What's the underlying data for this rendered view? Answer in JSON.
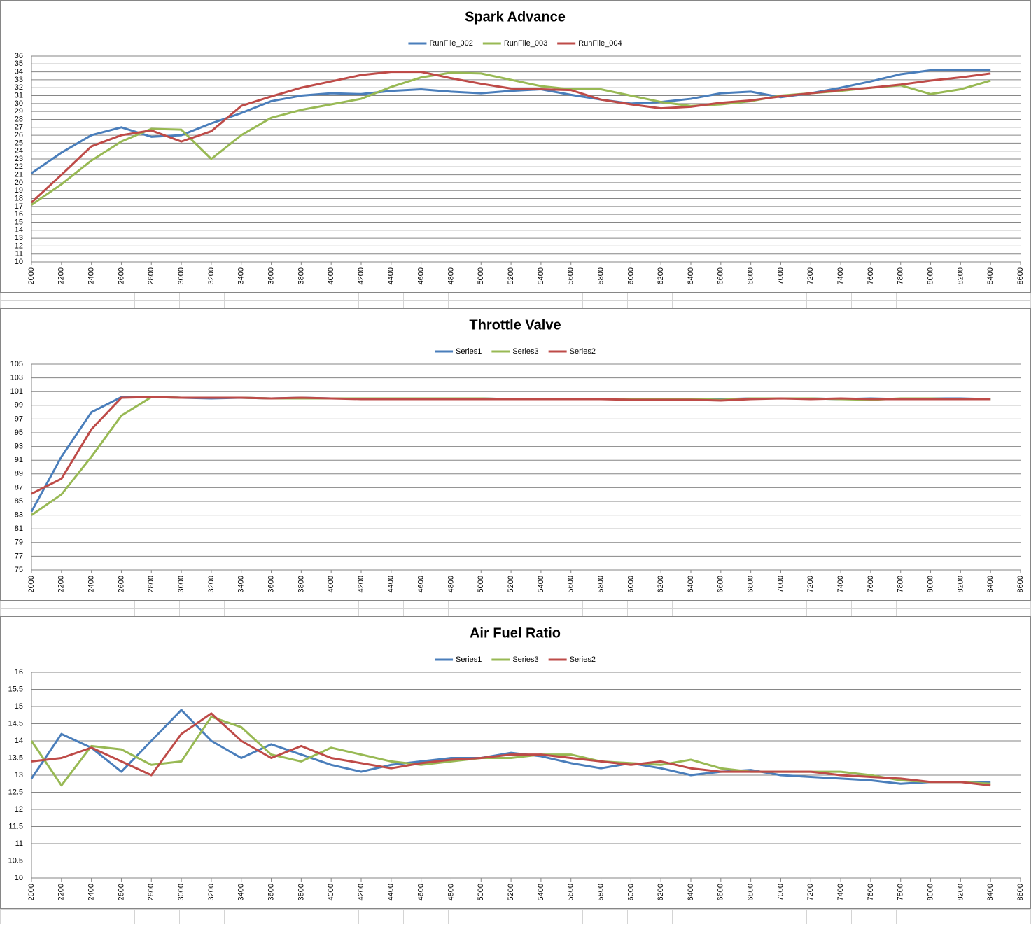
{
  "chart_data": [
    {
      "type": "line",
      "title": "Spark Advance",
      "x": [
        2000,
        2200,
        2400,
        2600,
        2800,
        3000,
        3200,
        3400,
        3600,
        3800,
        4000,
        4200,
        4400,
        4600,
        4800,
        5000,
        5200,
        5400,
        5600,
        5800,
        6000,
        6200,
        6400,
        6600,
        6800,
        7000,
        7200,
        7400,
        7600,
        7800,
        8000,
        8200,
        8400
      ],
      "series": [
        {
          "name": "RunFile_002",
          "color": "#4a7ebb",
          "values": [
            21.2,
            23.8,
            26,
            27,
            25.8,
            26,
            27.5,
            28.8,
            30.3,
            31,
            31.3,
            31.2,
            31.6,
            31.8,
            31.5,
            31.3,
            31.6,
            31.8,
            31.1,
            30.5,
            30,
            30.2,
            30.6,
            31.3,
            31.5,
            30.8,
            31.3,
            32,
            32.8,
            33.7,
            34.2,
            34.2,
            34.2
          ]
        },
        {
          "name": "RunFile_003",
          "color": "#98b954",
          "values": [
            17.2,
            19.8,
            22.8,
            25.2,
            26.8,
            26.7,
            23,
            26,
            28.2,
            29.2,
            29.9,
            30.6,
            32.1,
            33.3,
            33.9,
            33.8,
            33,
            32.2,
            31.8,
            31.8,
            31,
            30.2,
            29.7,
            29.9,
            30.3,
            31,
            31.3,
            31.6,
            32,
            32.3,
            31.2,
            31.8,
            32.9
          ]
        },
        {
          "name": "RunFile_004",
          "color": "#be4b48",
          "values": [
            17.5,
            21,
            24.6,
            26,
            26.6,
            25.2,
            26.5,
            29.7,
            30.9,
            32,
            32.8,
            33.6,
            34,
            34,
            33.2,
            32.5,
            31.9,
            31.8,
            31.7,
            30.5,
            29.9,
            29.4,
            29.6,
            30.1,
            30.4,
            30.9,
            31.3,
            31.7,
            32,
            32.4,
            32.9,
            33.3,
            33.8
          ]
        }
      ],
      "xlim": [
        2000,
        8600
      ],
      "ylim": [
        10,
        36
      ],
      "xticks": [
        2000,
        2200,
        2400,
        2600,
        2800,
        3000,
        3200,
        3400,
        3600,
        3800,
        4000,
        4200,
        4400,
        4600,
        4800,
        5000,
        5200,
        5400,
        5600,
        5800,
        6000,
        6200,
        6400,
        6600,
        6800,
        7000,
        7200,
        7400,
        7600,
        7800,
        8000,
        8200,
        8400,
        8600
      ],
      "yticks": [
        10,
        11,
        12,
        13,
        14,
        15,
        16,
        17,
        18,
        19,
        20,
        21,
        22,
        23,
        24,
        25,
        26,
        27,
        28,
        29,
        30,
        31,
        32,
        33,
        34,
        35,
        36
      ],
      "grid": true,
      "legend": "top"
    },
    {
      "type": "line",
      "title": "Throttle Valve",
      "x": [
        2000,
        2200,
        2400,
        2600,
        2800,
        3000,
        3200,
        3400,
        3600,
        3800,
        4000,
        4200,
        4400,
        4600,
        4800,
        5000,
        5200,
        5400,
        5600,
        5800,
        6000,
        6200,
        6400,
        6600,
        6800,
        7000,
        7200,
        7400,
        7600,
        7800,
        8000,
        8200,
        8400
      ],
      "series": [
        {
          "name": "Series1",
          "color": "#4a7ebb",
          "values": [
            83.5,
            91.5,
            98,
            100.2,
            100.2,
            100.1,
            100,
            100.1,
            100,
            100.1,
            100,
            100,
            100,
            100,
            100,
            100,
            99.9,
            99.9,
            99.9,
            99.9,
            99.9,
            99.9,
            99.9,
            99.9,
            100,
            100,
            100,
            99.9,
            100,
            99.9,
            100,
            100,
            99.9
          ]
        },
        {
          "name": "Series3",
          "color": "#98b954",
          "values": [
            83,
            86,
            91.5,
            97.5,
            100.2,
            100.1,
            100.1,
            100.1,
            100,
            100,
            100,
            100,
            100,
            100,
            100,
            100,
            99.9,
            99.9,
            99.9,
            99.9,
            99.9,
            99.9,
            99.9,
            99.8,
            100,
            100,
            100,
            99.9,
            99.8,
            100,
            100,
            99.9,
            99.9
          ]
        },
        {
          "name": "Series2",
          "color": "#be4b48",
          "values": [
            86.1,
            88.3,
            95.5,
            100.1,
            100.2,
            100.1,
            100.1,
            100.1,
            100,
            100.1,
            100,
            99.9,
            99.9,
            99.9,
            99.9,
            99.9,
            99.9,
            99.9,
            99.9,
            99.9,
            99.8,
            99.8,
            99.8,
            99.7,
            99.9,
            100,
            99.9,
            100,
            99.9,
            99.9,
            99.9,
            99.9,
            99.9
          ]
        }
      ],
      "xlim": [
        2000,
        8600
      ],
      "ylim": [
        75,
        105
      ],
      "xticks": [
        2000,
        2200,
        2400,
        2600,
        2800,
        3000,
        3200,
        3400,
        3600,
        3800,
        4000,
        4200,
        4400,
        4600,
        4800,
        5000,
        5200,
        5400,
        5600,
        5800,
        6000,
        6200,
        6400,
        6600,
        6800,
        7000,
        7200,
        7400,
        7600,
        7800,
        8000,
        8200,
        8400,
        8600
      ],
      "yticks": [
        75,
        77,
        79,
        81,
        83,
        85,
        87,
        89,
        91,
        93,
        95,
        97,
        99,
        101,
        103,
        105
      ],
      "grid": true,
      "legend": "top"
    },
    {
      "type": "line",
      "title": "Air Fuel Ratio",
      "x": [
        2000,
        2200,
        2400,
        2600,
        2800,
        3000,
        3200,
        3400,
        3600,
        3800,
        4000,
        4200,
        4400,
        4600,
        4800,
        5000,
        5200,
        5400,
        5600,
        5800,
        6000,
        6200,
        6400,
        6600,
        6800,
        7000,
        7200,
        7400,
        7600,
        7800,
        8000,
        8200,
        8400
      ],
      "series": [
        {
          "name": "Series1",
          "color": "#4a7ebb",
          "values": [
            12.9,
            14.2,
            13.8,
            13.1,
            14,
            14.9,
            14,
            13.5,
            13.9,
            13.6,
            13.3,
            13.1,
            13.3,
            13.4,
            13.5,
            13.5,
            13.65,
            13.55,
            13.35,
            13.2,
            13.35,
            13.2,
            13,
            13.1,
            13.15,
            13,
            12.95,
            12.9,
            12.85,
            12.75,
            12.8,
            12.8,
            12.8
          ]
        },
        {
          "name": "Series3",
          "color": "#98b954",
          "values": [
            14,
            12.7,
            13.85,
            13.75,
            13.3,
            13.4,
            14.7,
            14.4,
            13.6,
            13.4,
            13.8,
            13.6,
            13.4,
            13.3,
            13.4,
            13.5,
            13.5,
            13.6,
            13.6,
            13.4,
            13.35,
            13.3,
            13.45,
            13.2,
            13.1,
            13.1,
            13.1,
            13.1,
            13,
            12.85,
            12.8,
            12.8,
            12.75
          ]
        },
        {
          "name": "Series2",
          "color": "#be4b48",
          "values": [
            13.4,
            13.5,
            13.8,
            13.4,
            13,
            14.2,
            14.8,
            14,
            13.5,
            13.85,
            13.5,
            13.35,
            13.2,
            13.35,
            13.45,
            13.5,
            13.6,
            13.6,
            13.5,
            13.4,
            13.3,
            13.4,
            13.2,
            13.1,
            13.1,
            13.1,
            13.1,
            13,
            12.95,
            12.9,
            12.8,
            12.8,
            12.7
          ]
        }
      ],
      "xlim": [
        2000,
        8600
      ],
      "ylim": [
        10,
        16
      ],
      "xticks": [
        2000,
        2200,
        2400,
        2600,
        2800,
        3000,
        3200,
        3400,
        3600,
        3800,
        4000,
        4200,
        4400,
        4600,
        4800,
        5000,
        5200,
        5400,
        5600,
        5800,
        6000,
        6200,
        6400,
        6600,
        6800,
        7000,
        7200,
        7400,
        7600,
        7800,
        8000,
        8200,
        8400,
        8600
      ],
      "yticks": [
        10,
        10.5,
        11,
        11.5,
        12,
        12.5,
        13,
        13.5,
        14,
        14.5,
        15,
        15.5,
        16
      ],
      "grid": true,
      "legend": "top"
    }
  ]
}
